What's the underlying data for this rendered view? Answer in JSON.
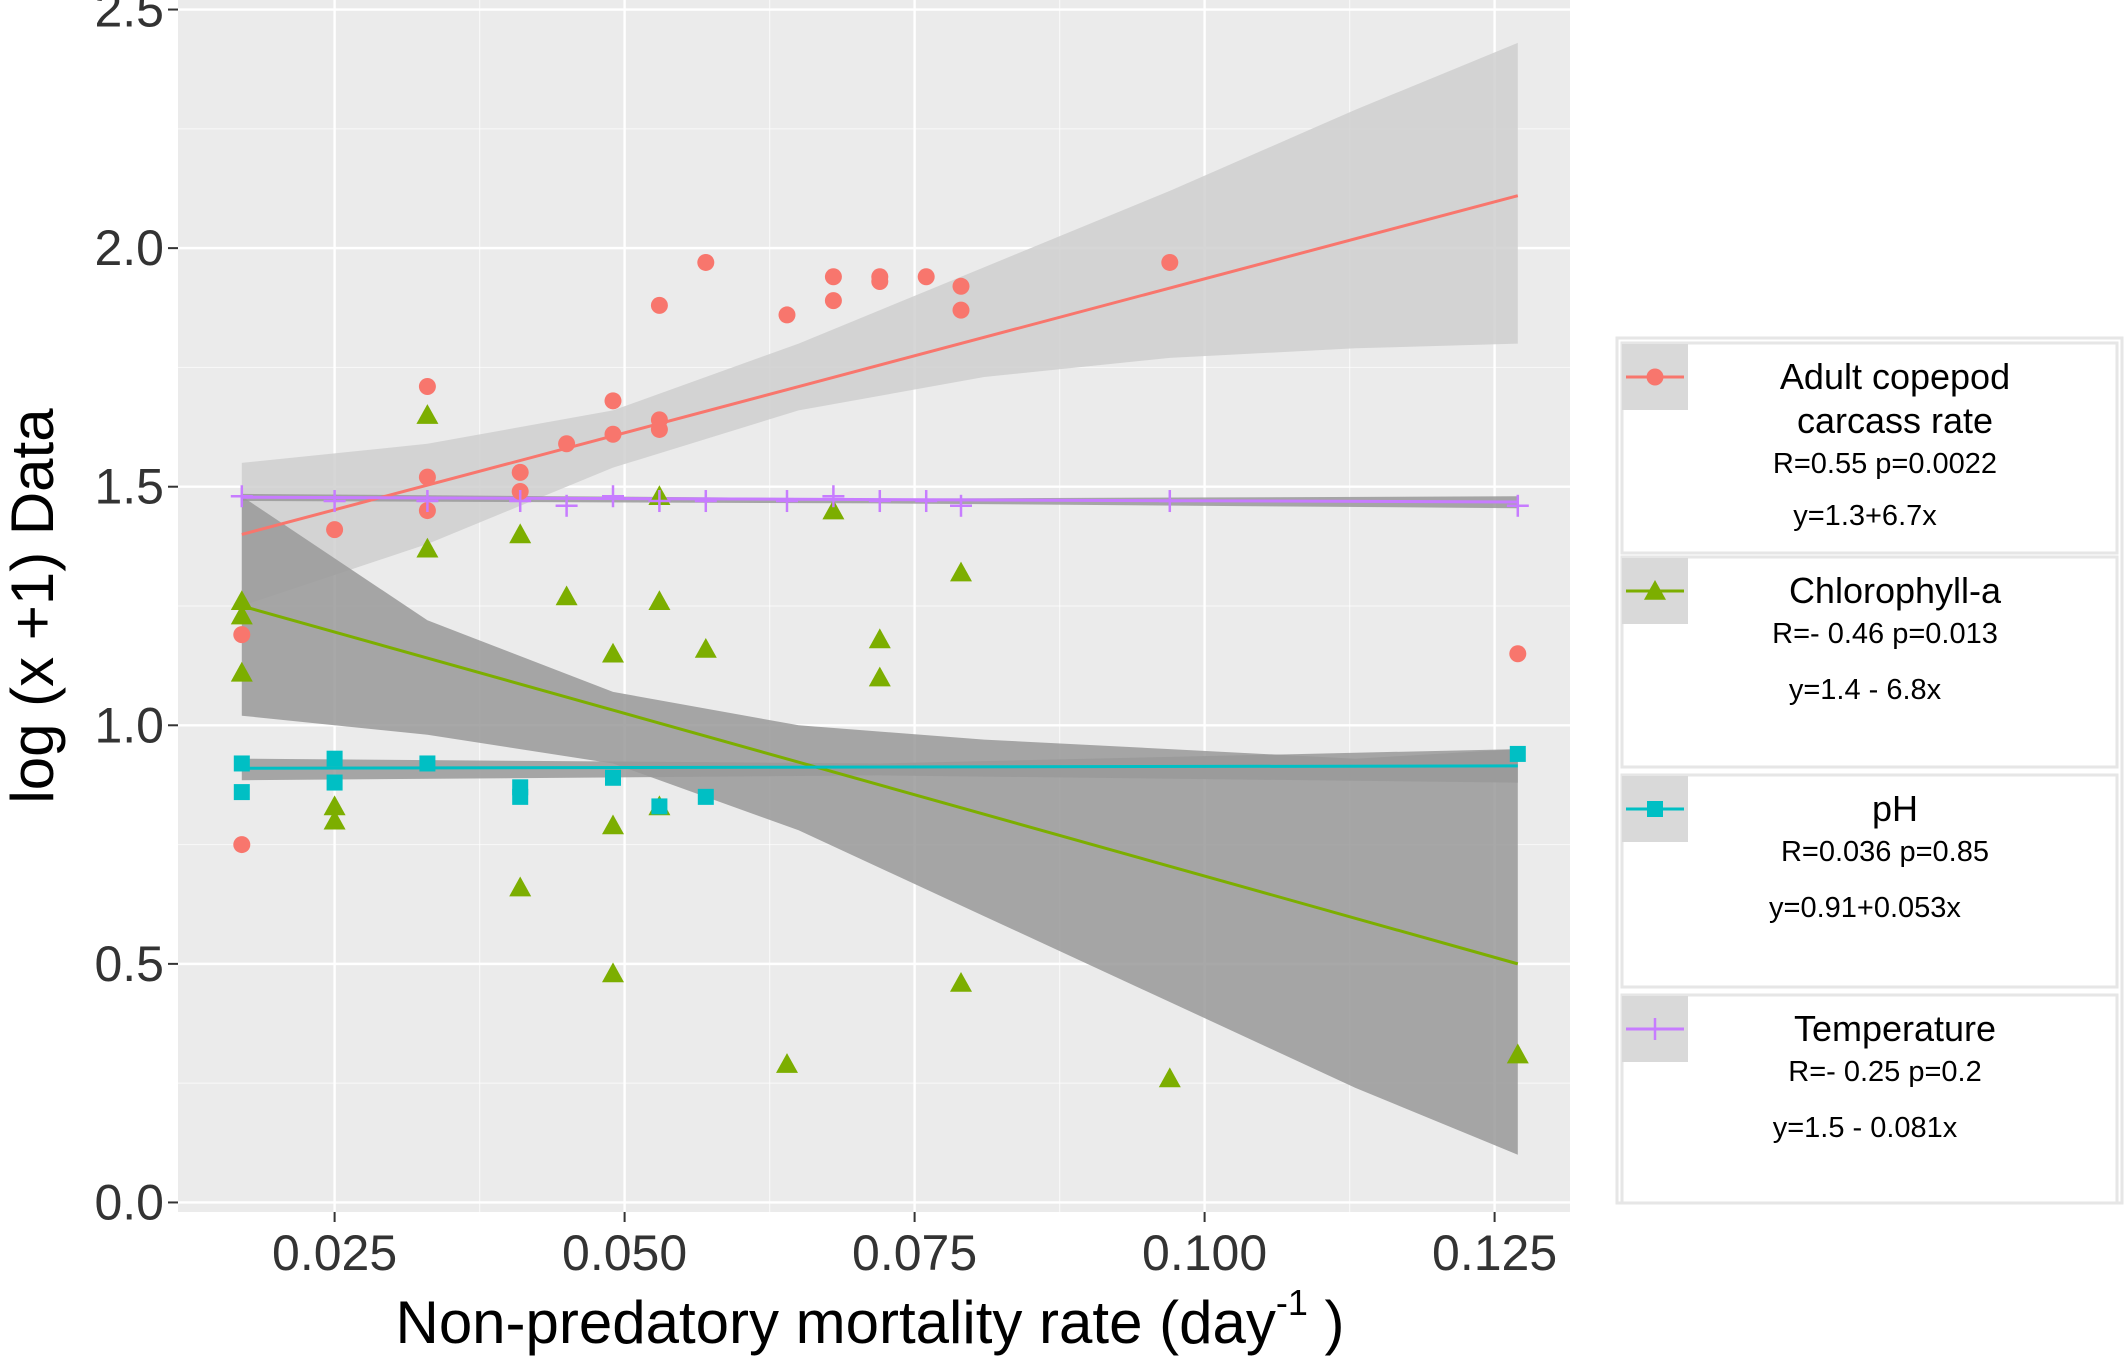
{
  "chart_data": {
    "type": "scatter",
    "xlabel_main": "Non-predatory mortality  rate (day",
    "xlabel_sup": "-1",
    "xlabel_close": " )",
    "ylabel": "log (x +1)  Data",
    "xlim": [
      0.0115,
      0.1315
    ],
    "ylim": [
      -0.02,
      2.52
    ],
    "xticks": [
      0.025,
      0.05,
      0.075,
      0.1,
      0.125
    ],
    "xtick_labels": [
      "0.025",
      "0.050",
      "0.075",
      "0.100",
      "0.125"
    ],
    "yticks": [
      0.0,
      0.5,
      1.0,
      1.5,
      2.0,
      2.5
    ],
    "ytick_labels": [
      "0.0",
      "0.5",
      "1.0",
      "1.5",
      "2.0",
      "2.5"
    ],
    "grid": true,
    "legend_position": "right",
    "series": [
      {
        "name": "Adult copepod carcass rate",
        "label_lines": [
          "Adult copepod",
          "carcass rate"
        ],
        "stat_r": "R=0.55  p=0.0022",
        "stat_eq": "y=1.3+6.7x",
        "color": "#F8766D",
        "marker": "circle",
        "band_color": "#cfcfcf",
        "x": [
          0.017,
          0.017,
          0.025,
          0.033,
          0.033,
          0.033,
          0.041,
          0.041,
          0.045,
          0.049,
          0.049,
          0.053,
          0.053,
          0.053,
          0.057,
          0.064,
          0.068,
          0.068,
          0.072,
          0.072,
          0.076,
          0.079,
          0.079,
          0.097,
          0.127
        ],
        "y": [
          1.19,
          0.75,
          1.41,
          1.71,
          1.52,
          1.45,
          1.53,
          1.49,
          1.59,
          1.68,
          1.61,
          1.64,
          1.62,
          1.88,
          1.97,
          1.86,
          1.89,
          1.94,
          1.94,
          1.93,
          1.94,
          1.92,
          1.87,
          1.97,
          1.15
        ],
        "fit": {
          "x": [
            0.017,
            0.127
          ],
          "y": [
            1.4,
            2.11
          ]
        },
        "band": {
          "x": [
            0.017,
            0.033,
            0.049,
            0.065,
            0.081,
            0.097,
            0.113,
            0.127
          ],
          "lower": [
            1.25,
            1.38,
            1.54,
            1.66,
            1.73,
            1.77,
            1.79,
            1.8
          ],
          "upper": [
            1.55,
            1.59,
            1.66,
            1.8,
            1.96,
            2.12,
            2.29,
            2.43
          ]
        }
      },
      {
        "name": "Chlorophyll-a",
        "label_lines": [
          "Chlorophyll-a"
        ],
        "stat_r": "R=- 0.46  p=0.013",
        "stat_eq": "y=1.4 - 6.8x",
        "color": "#7CAE00",
        "marker": "triangle",
        "band_color": "#999999",
        "x": [
          0.017,
          0.017,
          0.017,
          0.025,
          0.025,
          0.033,
          0.033,
          0.041,
          0.041,
          0.045,
          0.049,
          0.049,
          0.049,
          0.053,
          0.053,
          0.053,
          0.057,
          0.064,
          0.068,
          0.072,
          0.072,
          0.079,
          0.079,
          0.097,
          0.127
        ],
        "y": [
          1.26,
          1.23,
          1.11,
          0.83,
          0.8,
          1.65,
          1.37,
          1.4,
          0.66,
          1.27,
          1.15,
          0.79,
          0.48,
          1.48,
          1.26,
          0.83,
          1.16,
          0.29,
          1.45,
          1.18,
          1.1,
          1.32,
          0.46,
          0.26,
          0.31
        ],
        "fit": {
          "x": [
            0.017,
            0.127
          ],
          "y": [
            1.25,
            0.5
          ]
        },
        "band": {
          "x": [
            0.017,
            0.033,
            0.049,
            0.065,
            0.081,
            0.097,
            0.113,
            0.127
          ],
          "lower": [
            1.02,
            0.98,
            0.92,
            0.78,
            0.6,
            0.42,
            0.24,
            0.1
          ],
          "upper": [
            1.48,
            1.22,
            1.07,
            1.0,
            0.97,
            0.95,
            0.93,
            0.95
          ]
        }
      },
      {
        "name": "pH",
        "label_lines": [
          "pH"
        ],
        "stat_r": "R=0.036  p=0.85",
        "stat_eq": "y=0.91+0.053x",
        "color": "#00BFC4",
        "marker": "square",
        "band_color": "#999999",
        "x": [
          0.017,
          0.017,
          0.025,
          0.025,
          0.033,
          0.041,
          0.041,
          0.049,
          0.053,
          0.057,
          0.127
        ],
        "y": [
          0.92,
          0.86,
          0.93,
          0.88,
          0.92,
          0.87,
          0.85,
          0.89,
          0.83,
          0.85,
          0.94
        ],
        "fit": {
          "x": [
            0.017,
            0.127
          ],
          "y": [
            0.91,
            0.915
          ]
        },
        "band": {
          "x": [
            0.017,
            0.072,
            0.127
          ],
          "lower": [
            0.885,
            0.895,
            0.88
          ],
          "upper": [
            0.93,
            0.92,
            0.95
          ]
        }
      },
      {
        "name": "Temperature",
        "label_lines": [
          "Temperature"
        ],
        "stat_r": "R=- 0.25 p=0.2",
        "stat_eq": "y=1.5 - 0.081x",
        "color": "#C77CFF",
        "marker": "cross",
        "band_color": "#999999",
        "x": [
          0.017,
          0.025,
          0.033,
          0.041,
          0.045,
          0.049,
          0.053,
          0.057,
          0.064,
          0.068,
          0.072,
          0.076,
          0.079,
          0.097,
          0.127
        ],
        "y": [
          1.48,
          1.47,
          1.47,
          1.47,
          1.46,
          1.48,
          1.47,
          1.47,
          1.47,
          1.48,
          1.47,
          1.47,
          1.46,
          1.47,
          1.46
        ],
        "fit": {
          "x": [
            0.017,
            0.127
          ],
          "y": [
            1.478,
            1.468
          ]
        },
        "band": {
          "x": [
            0.017,
            0.072,
            0.127
          ],
          "lower": [
            1.47,
            1.465,
            1.455
          ],
          "upper": [
            1.485,
            1.475,
            1.48
          ]
        }
      }
    ]
  },
  "colors": {
    "panel": "#ebebeb",
    "grid_major": "#ffffff",
    "legend_key_bg": "#d9d9d9",
    "legend_border": "#e6e6e6"
  }
}
